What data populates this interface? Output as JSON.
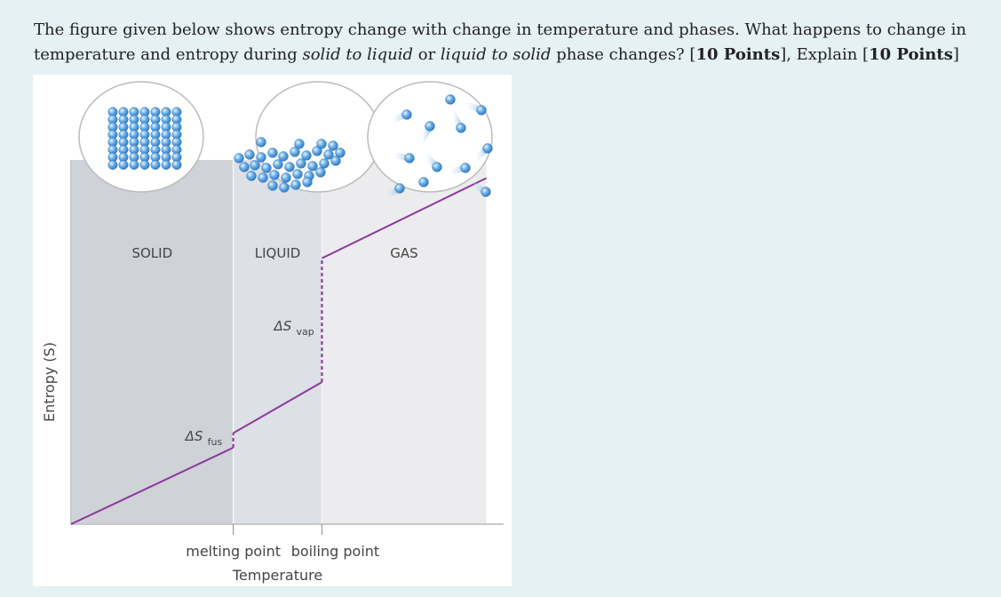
{
  "question": {
    "part1": "The figure given below shows entropy change with change in temperature and phases. What happens to change in temperature and entropy during ",
    "italic1": "solid to liquid",
    "part2": " or ",
    "italic2": "liquid to solid",
    "part3": " phase changes? [",
    "points1": "10 Points",
    "part4": "], Explain [",
    "points2": "10 Points",
    "part5": "]"
  },
  "chart_data": {
    "type": "line",
    "title": "",
    "xlabel": "Temperature",
    "ylabel": "Entropy (S)",
    "xlim": [
      0,
      10
    ],
    "ylim": [
      0,
      10
    ],
    "x_ticks": [
      {
        "x": 3.75,
        "label": "melting point"
      },
      {
        "x": 5.8,
        "label": "boiling point"
      }
    ],
    "regions": [
      {
        "label": "SOLID",
        "x_start": 0,
        "x_end": 3.75,
        "color": "#cfd2d6"
      },
      {
        "label": "LIQUID",
        "x_start": 3.75,
        "x_end": 5.8,
        "color": "#dde0e6"
      },
      {
        "label": "GAS",
        "x_start": 5.8,
        "x_end": 9.6,
        "color": "#ececee"
      }
    ],
    "series": [
      {
        "color": "#8b3a9e",
        "points": [
          {
            "x": 0,
            "y": 0
          },
          {
            "x": 3.75,
            "y": 2.1
          },
          {
            "x": 3.75,
            "y": 2.5,
            "dashed": true
          },
          {
            "x": 5.8,
            "y": 3.9
          },
          {
            "x": 5.8,
            "y": 7.3,
            "dashed": true
          },
          {
            "x": 9.6,
            "y": 9.5
          }
        ]
      }
    ],
    "annotations": [
      {
        "symbol": "ΔS",
        "sub": "fus",
        "x": 3.75
      },
      {
        "symbol": "ΔS",
        "sub": "vap",
        "x": 5.8
      }
    ]
  }
}
